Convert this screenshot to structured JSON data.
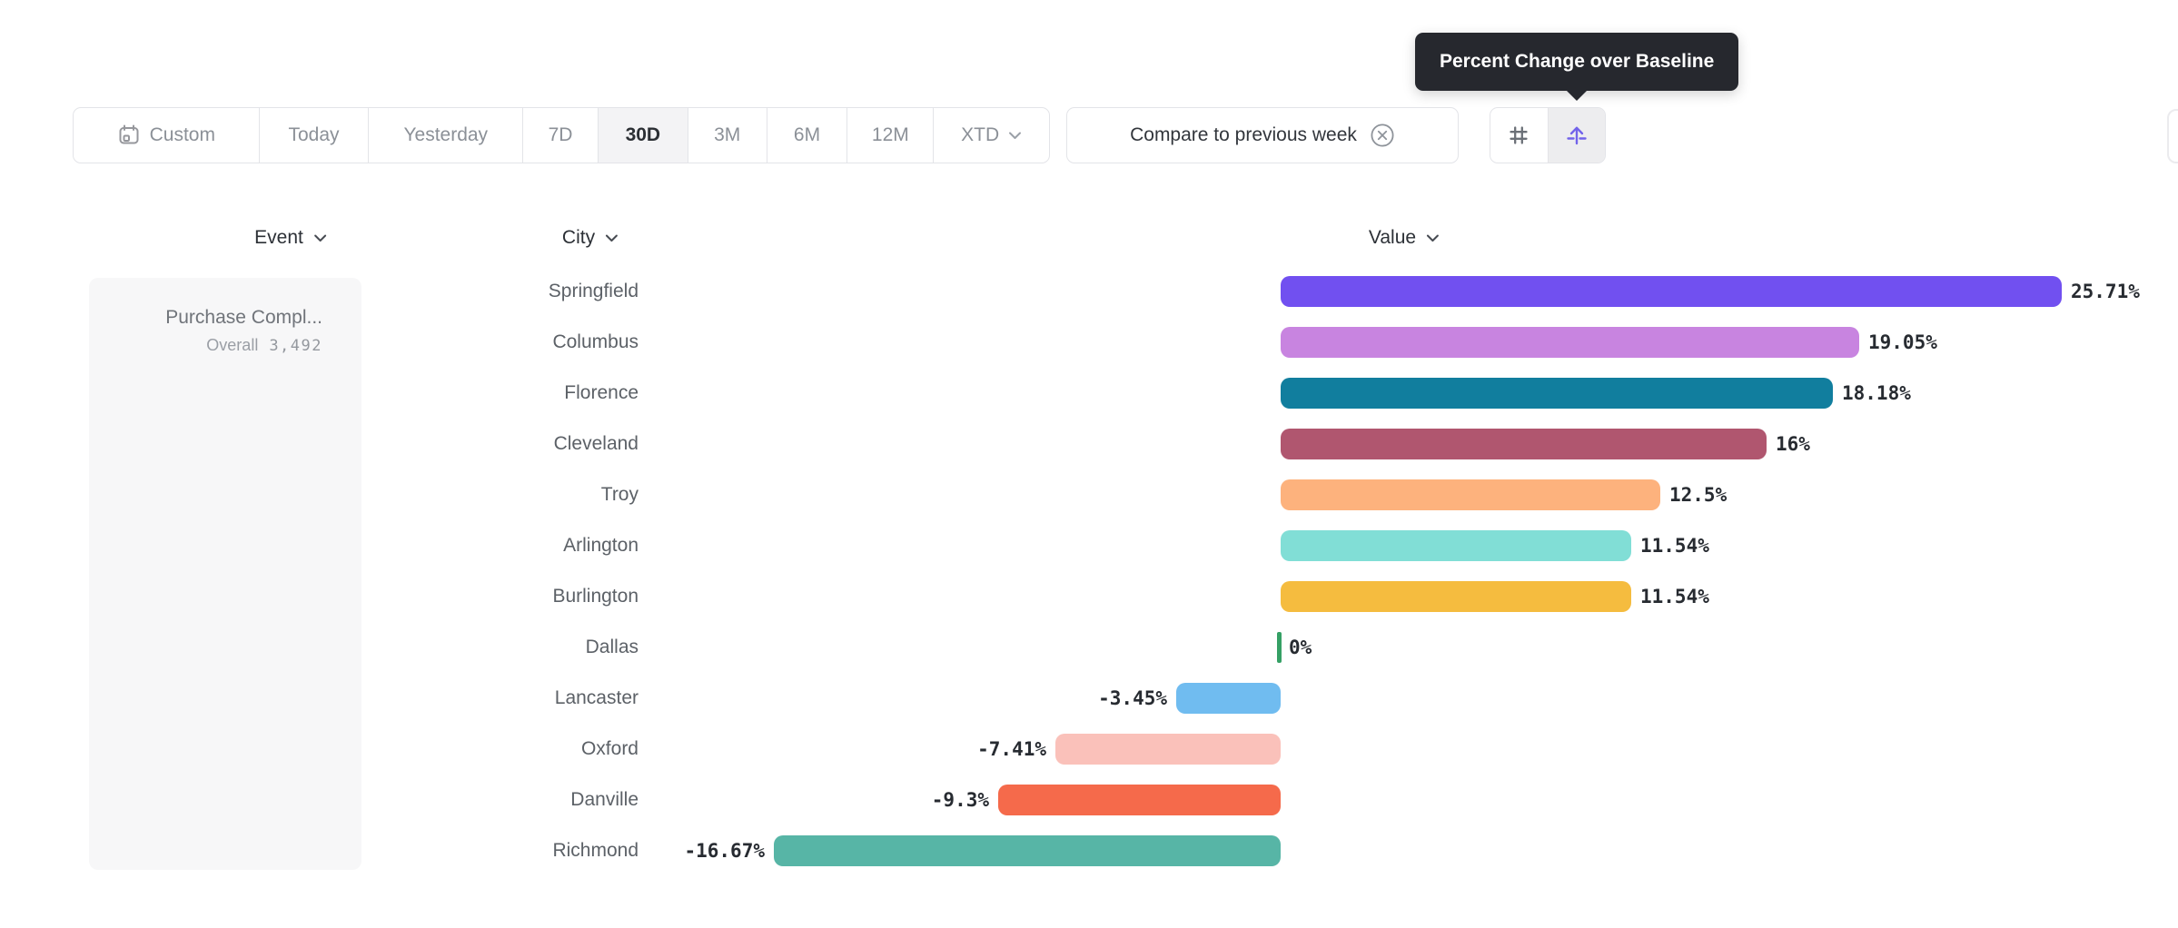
{
  "tooltip": {
    "text": "Percent Change over Baseline"
  },
  "toolbar": {
    "date_ranges": {
      "items": [
        {
          "label": "Custom",
          "selected": false,
          "icon": "calendar"
        },
        {
          "label": "Today",
          "selected": false
        },
        {
          "label": "Yesterday",
          "selected": false
        },
        {
          "label": "7D",
          "selected": false
        },
        {
          "label": "30D",
          "selected": true
        },
        {
          "label": "3M",
          "selected": false
        },
        {
          "label": "6M",
          "selected": false
        },
        {
          "label": "12M",
          "selected": false
        },
        {
          "label": "XTD",
          "selected": false,
          "chevron": true
        }
      ]
    },
    "compare_chip": {
      "label": "Compare to previous week",
      "icon": "circle-x"
    },
    "view_toggle": {
      "items": [
        {
          "name": "numbers-grid",
          "selected": false
        },
        {
          "name": "percent-change-over-baseline",
          "selected": true
        }
      ]
    }
  },
  "columns": {
    "event": "Event",
    "city": "City",
    "value": "Value"
  },
  "event_panel": {
    "event_name": "Purchase Compl...",
    "overall_label": "Overall",
    "overall_value": "3,492"
  },
  "colors": {
    "accent_purple": "#7263ea",
    "tooltip_bg": "#26282e",
    "selected_segment_bg": "#f3f3f5"
  },
  "chart_data": {
    "type": "bar",
    "orientation": "horizontal",
    "title": "Percent Change over Baseline",
    "categories": [
      "Springfield",
      "Columbus",
      "Florence",
      "Cleveland",
      "Troy",
      "Arlington",
      "Burlington",
      "Dallas",
      "Lancaster",
      "Oxford",
      "Danville",
      "Richmond"
    ],
    "values": [
      25.71,
      19.05,
      18.18,
      16,
      12.5,
      11.54,
      11.54,
      0,
      -3.45,
      -7.41,
      -9.3,
      -16.67
    ],
    "value_labels": [
      "25.71%",
      "19.05%",
      "18.18%",
      "16%",
      "12.5%",
      "11.54%",
      "11.54%",
      "0%",
      "-3.45%",
      "-7.41%",
      "-9.3%",
      "-16.67%"
    ],
    "bar_colors": [
      "#7150f0",
      "#c884e0",
      "#117e9e",
      "#b0566f",
      "#fdb27d",
      "#81ded6",
      "#f5bc3f",
      "#35a065",
      "#70bcf0",
      "#fac1ba",
      "#f56a4b",
      "#57b5a6"
    ],
    "unit": "%",
    "baseline": 0,
    "xlim": [
      -18,
      28
    ],
    "grid": false,
    "legend": false
  }
}
